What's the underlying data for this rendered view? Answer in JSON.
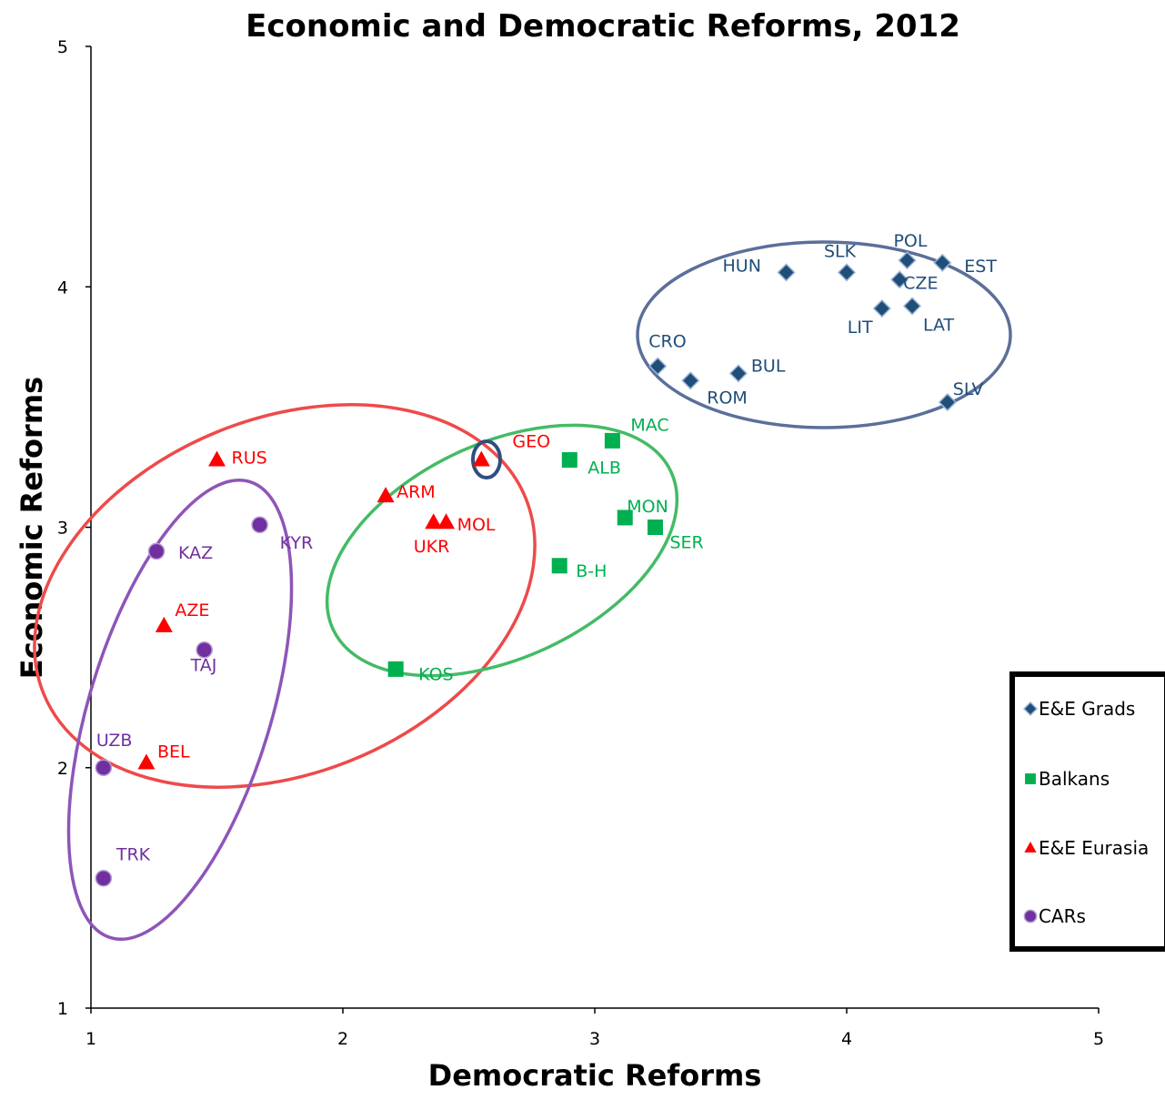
{
  "chart_data": {
    "type": "scatter",
    "title": "Economic and Democratic Reforms, 2012",
    "xlabel": "Democratic Reforms",
    "ylabel": "Economic Reforms",
    "xlim": [
      1,
      5
    ],
    "ylim": [
      1,
      5
    ],
    "xticks": [
      "1",
      "2",
      "3",
      "4",
      "5"
    ],
    "yticks": [
      "1",
      "2",
      "3",
      "4",
      "5"
    ],
    "grid": false,
    "legend_position": "right",
    "series": [
      {
        "name": "E&E Grads",
        "marker": "diamond",
        "color": "#1F4E79",
        "points": [
          {
            "label": "HUN",
            "x": 3.76,
            "y": 4.06
          },
          {
            "label": "SLK",
            "x": 4.0,
            "y": 4.06
          },
          {
            "label": "POL",
            "x": 4.24,
            "y": 4.11
          },
          {
            "label": "EST",
            "x": 4.38,
            "y": 4.1
          },
          {
            "label": "CZE",
            "x": 4.21,
            "y": 4.03
          },
          {
            "label": "LIT",
            "x": 4.14,
            "y": 3.91
          },
          {
            "label": "LAT",
            "x": 4.26,
            "y": 3.92
          },
          {
            "label": "CRO",
            "x": 3.25,
            "y": 3.67
          },
          {
            "label": "ROM",
            "x": 3.38,
            "y": 3.61
          },
          {
            "label": "BUL",
            "x": 3.57,
            "y": 3.64
          },
          {
            "label": "SLV",
            "x": 4.4,
            "y": 3.52
          }
        ]
      },
      {
        "name": "Balkans",
        "marker": "square",
        "color": "#00B050",
        "points": [
          {
            "label": "MAC",
            "x": 3.07,
            "y": 3.36
          },
          {
            "label": "ALB",
            "x": 2.9,
            "y": 3.28
          },
          {
            "label": "MON",
            "x": 3.12,
            "y": 3.04
          },
          {
            "label": "SER",
            "x": 3.24,
            "y": 3.0
          },
          {
            "label": "B-H",
            "x": 2.86,
            "y": 2.84
          },
          {
            "label": "KOS",
            "x": 2.21,
            "y": 2.41
          }
        ]
      },
      {
        "name": "E&E Eurasia",
        "marker": "triangle",
        "color": "#FF0000",
        "points": [
          {
            "label": "RUS",
            "x": 1.5,
            "y": 3.28
          },
          {
            "label": "GEO",
            "x": 2.55,
            "y": 3.28
          },
          {
            "label": "ARM",
            "x": 2.17,
            "y": 3.13
          },
          {
            "label": "UKR",
            "x": 2.36,
            "y": 3.02
          },
          {
            "label": "MOL",
            "x": 2.41,
            "y": 3.02
          },
          {
            "label": "AZE",
            "x": 1.29,
            "y": 2.59
          },
          {
            "label": "BEL",
            "x": 1.22,
            "y": 2.02
          }
        ]
      },
      {
        "name": "CARs",
        "marker": "circle",
        "color": "#7030A0",
        "points": [
          {
            "label": "KYR",
            "x": 1.67,
            "y": 3.01
          },
          {
            "label": "KAZ",
            "x": 1.26,
            "y": 2.9
          },
          {
            "label": "TAJ",
            "x": 1.45,
            "y": 2.49
          },
          {
            "label": "UZB",
            "x": 1.05,
            "y": 2.0
          },
          {
            "label": "TRK",
            "x": 1.05,
            "y": 1.54
          }
        ]
      }
    ]
  }
}
